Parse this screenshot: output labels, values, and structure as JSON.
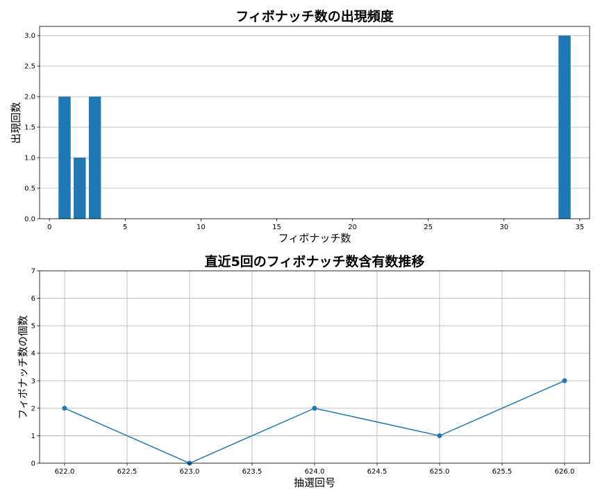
{
  "chart_data": [
    {
      "type": "bar",
      "title": "フィボナッチ数の出現頻度",
      "xlabel": "フィボナッチ数",
      "ylabel": "出現回数",
      "x": [
        1,
        2,
        3,
        34
      ],
      "values": [
        2,
        1,
        2,
        3
      ],
      "xlim": [
        -0.65,
        35.65
      ],
      "ylim": [
        0,
        3.15
      ],
      "xticks": [
        0,
        5,
        10,
        15,
        20,
        25,
        30,
        35
      ],
      "xtick_labels": [
        "0",
        "5",
        "10",
        "15",
        "20",
        "25",
        "30",
        "35"
      ],
      "yticks": [
        0,
        0.5,
        1.0,
        1.5,
        2.0,
        2.5,
        3.0
      ],
      "ytick_labels": [
        "0.0",
        "0.5",
        "1.0",
        "1.5",
        "2.0",
        "2.5",
        "3.0"
      ],
      "bar_width": 0.8,
      "grid": "y",
      "color": "#1f77b4"
    },
    {
      "type": "line",
      "title": "直近5回のフィボナッチ数含有数推移",
      "xlabel": "抽選回号",
      "ylabel": "フィボナッチ数の個数",
      "x": [
        622,
        623,
        624,
        625,
        626
      ],
      "values": [
        2,
        0,
        2,
        1,
        3
      ],
      "xlim": [
        621.8,
        626.2
      ],
      "ylim": [
        0,
        7
      ],
      "xticks": [
        622.0,
        622.5,
        623.0,
        623.5,
        624.0,
        624.5,
        625.0,
        625.5,
        626.0
      ],
      "xtick_labels": [
        "622.0",
        "622.5",
        "623.0",
        "623.5",
        "624.0",
        "624.5",
        "625.0",
        "625.5",
        "626.0"
      ],
      "yticks": [
        0,
        1,
        2,
        3,
        4,
        5,
        6,
        7
      ],
      "ytick_labels": [
        "0",
        "1",
        "2",
        "3",
        "4",
        "5",
        "6",
        "7"
      ],
      "grid": "both",
      "marker": "circle",
      "color": "#1f77b4"
    }
  ]
}
